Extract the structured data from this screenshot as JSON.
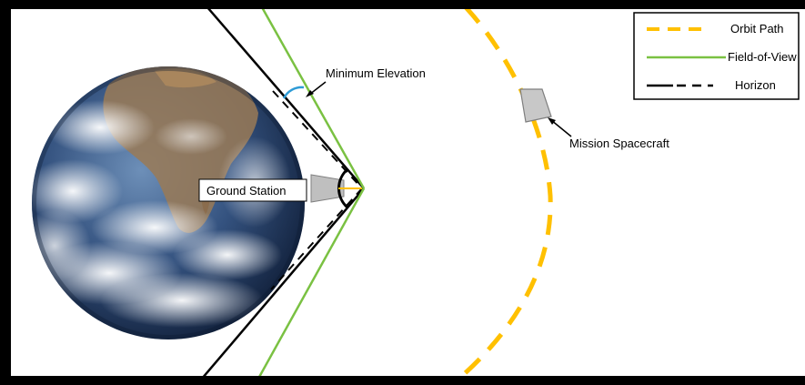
{
  "legend": {
    "items": [
      {
        "label": "Orbit Path",
        "style": "dashed",
        "color": "#FFC000"
      },
      {
        "label": "Field-of-View",
        "style": "solid",
        "color": "#7AC142"
      },
      {
        "label": "Horizon",
        "style": "solid-dashed",
        "color": "#000000"
      }
    ]
  },
  "labels": {
    "minimum_elevation": "Minimum Elevation",
    "mission_spacecraft": "Mission Spacecraft",
    "ground_station": "Ground Station"
  },
  "colors": {
    "orbit": "#FFC000",
    "fov": "#7AC142",
    "horizon": "#000000",
    "elevation_arc": "#2E9BD6",
    "ocean": "#2F4E7E",
    "cloud": "#E8EEF4"
  }
}
